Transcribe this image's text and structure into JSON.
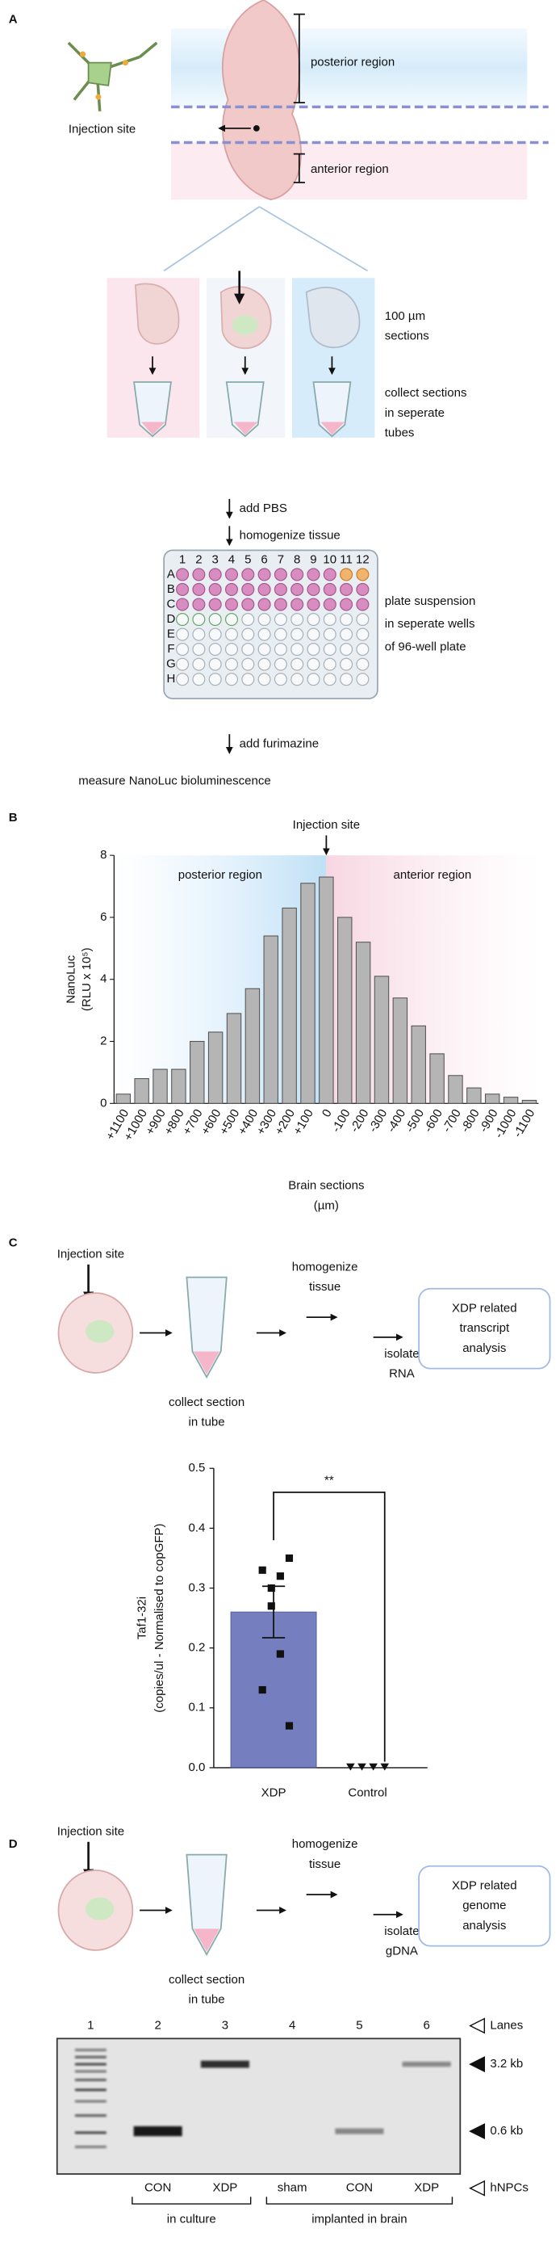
{
  "panel_labels": [
    "A",
    "B",
    "C",
    "D"
  ],
  "panel_a": {
    "posterior_region": "posterior region",
    "injection_site": "Injection site",
    "anterior_region": "anterior region",
    "sections": [
      "100 µm",
      "sections"
    ],
    "collect": [
      "collect sections",
      "in seperate",
      "tubes"
    ],
    "add_pbs": "add PBS",
    "homogenize": "homogenize tissue",
    "plate_columns": [
      "1",
      "2",
      "3",
      "4",
      "5",
      "6",
      "7",
      "8",
      "9",
      "10",
      "11",
      "12"
    ],
    "plate_rows": [
      "A",
      "B",
      "C",
      "D",
      "E",
      "F",
      "G",
      "H"
    ],
    "plate": [
      "plate suspension",
      "in seperate wells",
      "of 96-well plate"
    ],
    "add_furimazine": "add furimazine",
    "measure": "measure NanoLuc bioluminescence"
  },
  "chart_data": [
    {
      "type": "bar",
      "annotations": [
        "Injection site",
        "posterior region",
        "anterior region"
      ],
      "ylabel": [
        "NanoLuc",
        "(RLU x 10⁵)"
      ],
      "xlabel": [
        "Brain sections",
        "(µm)"
      ],
      "categories": [
        "+1100",
        "+1000",
        "+900",
        "+800",
        "+700",
        "+600",
        "+500",
        "+400",
        "+300",
        "+200",
        "+100",
        "0",
        "-100",
        "-200",
        "-300",
        "-400",
        "-500",
        "-600",
        "-700",
        "-800",
        "-900",
        "-1000",
        "-1100"
      ],
      "values": [
        0.3,
        0.8,
        1.1,
        1.1,
        2.0,
        2.3,
        2.9,
        3.7,
        5.4,
        6.3,
        7.1,
        7.3,
        6.0,
        5.2,
        4.1,
        3.4,
        2.5,
        1.6,
        0.9,
        0.5,
        0.3,
        0.2,
        0.1
      ],
      "color": "#b5b5b5",
      "ylim": [
        0,
        8
      ],
      "yticks": [
        0,
        2,
        4,
        6,
        8
      ]
    },
    {
      "type": "bar",
      "ylabel": [
        "Taf1-32i",
        "(copies/ul - Normalised to copGFP)"
      ],
      "categories": [
        "XDP",
        "Control"
      ],
      "values": [
        0.26,
        0
      ],
      "errors": [
        0.043,
        null
      ],
      "points": [
        [
          0.35,
          0.33,
          0.32,
          0.3,
          0.27,
          0.19,
          0.13,
          0.07
        ],
        [
          0,
          0,
          0,
          0
        ]
      ],
      "significance": "**",
      "color": "#5d68b4",
      "ylim": [
        0,
        0.5
      ],
      "yticks": [
        {
          "value": 0,
          "label": "0.0"
        },
        0.1,
        0.2,
        0.3,
        0.4,
        0.5
      ]
    }
  ],
  "panel_c": {
    "injection_site": "Injection site",
    "collect": [
      "collect section",
      "in tube"
    ],
    "homogenize": [
      "homogenize",
      "tissue"
    ],
    "isolate": [
      "isolate",
      "RNA"
    ],
    "analysis": [
      "XDP related",
      "transcript",
      "analysis"
    ]
  },
  "panel_d": {
    "injection_site": "Injection site",
    "collect": [
      "collect section",
      "in tube"
    ],
    "homogenize": [
      "homogenize",
      "tissue"
    ],
    "isolate": [
      "isolate",
      "gDNA"
    ],
    "analysis": [
      "XDP related",
      "genome",
      "analysis"
    ],
    "lane_numbers": [
      "1",
      "2",
      "3",
      "4",
      "5",
      "6"
    ],
    "lanes_label": "Lanes",
    "sizes": [
      "3.2 kb",
      "0.6 kb"
    ],
    "samples": [
      "CON",
      "XDP",
      "sham",
      "CON",
      "XDP"
    ],
    "cells_label": "hNPCs",
    "groups": [
      "in culture",
      "implanted in brain"
    ]
  }
}
